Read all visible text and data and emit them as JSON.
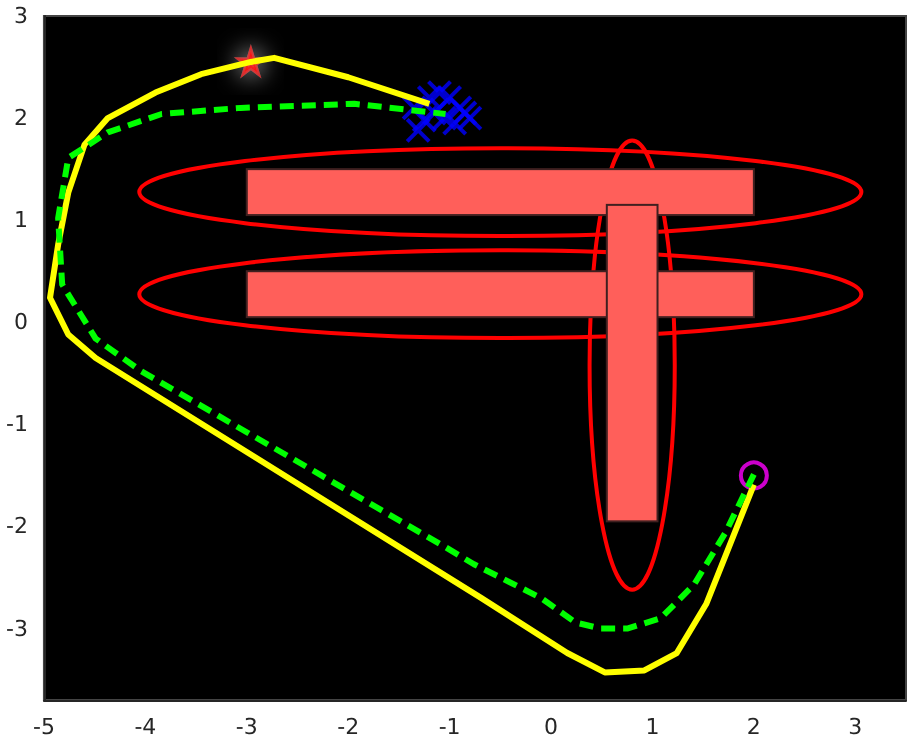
{
  "chart_data": {
    "type": "line",
    "xlim": [
      -5,
      3.5
    ],
    "ylim": [
      -3.7,
      3
    ],
    "xticks": [
      -5,
      -4,
      -3,
      -2,
      -1,
      0,
      1,
      2,
      3
    ],
    "yticks": [
      -3,
      -2,
      -1,
      0,
      1,
      2,
      3
    ],
    "marker": "none",
    "series": [
      {
        "type": "line",
        "color": "#ffff00",
        "line_style": "solid",
        "x": [
          -1.2,
          -2.0,
          -2.73,
          -2.96,
          -3.45,
          -3.9,
          -4.37,
          -4.6,
          -4.76,
          -4.86,
          -4.94,
          -4.76,
          -4.49,
          -0.69,
          0.16,
          0.53,
          0.92,
          1.24,
          1.53,
          2.0
        ],
        "values": [
          2.14,
          2.4,
          2.59,
          2.55,
          2.43,
          2.25,
          2.0,
          1.74,
          1.27,
          0.76,
          0.24,
          -0.12,
          -0.35,
          -2.7,
          -3.24,
          -3.43,
          -3.41,
          -3.24,
          -2.76,
          -1.59
        ]
      },
      {
        "type": "line",
        "color": "#00ff00",
        "line_style": "dashed",
        "x": [
          2.0,
          1.72,
          1.41,
          1.08,
          0.75,
          0.49,
          0.24,
          -0.1,
          -0.76,
          -1.08,
          -4.04,
          -4.49,
          -4.82,
          -4.86,
          -4.76,
          -4.37,
          -3.84,
          -3.06,
          -1.94,
          -1.04
        ],
        "values": [
          -1.49,
          -2.06,
          -2.57,
          -2.9,
          -3.0,
          -3.0,
          -2.94,
          -2.7,
          -2.37,
          -2.18,
          -0.48,
          -0.16,
          0.37,
          1.02,
          1.61,
          1.86,
          2.04,
          2.1,
          2.14,
          2.04
        ]
      },
      {
        "type": "scatter",
        "color": "#0000ff",
        "marker": "cross",
        "x": [
          -1.35,
          -1.31,
          -1.2,
          -1.1,
          -1.0,
          -0.85,
          -1.05,
          -0.95,
          -1.15,
          -0.9,
          -1.25,
          -0.8
        ],
        "values": [
          2.1,
          1.88,
          2.2,
          2.25,
          2.2,
          2.05,
          2.0,
          1.95,
          2.05,
          2.1,
          1.98,
          2.0
        ]
      },
      {
        "type": "scatter",
        "color": "#ff0000",
        "marker": "star",
        "x": [
          -2.96
        ],
        "values": [
          2.55
        ]
      },
      {
        "type": "scatter",
        "color": "#ff00ff",
        "marker": "circle",
        "x": [
          2.0
        ],
        "values": [
          -1.5
        ]
      }
    ]
  }
}
